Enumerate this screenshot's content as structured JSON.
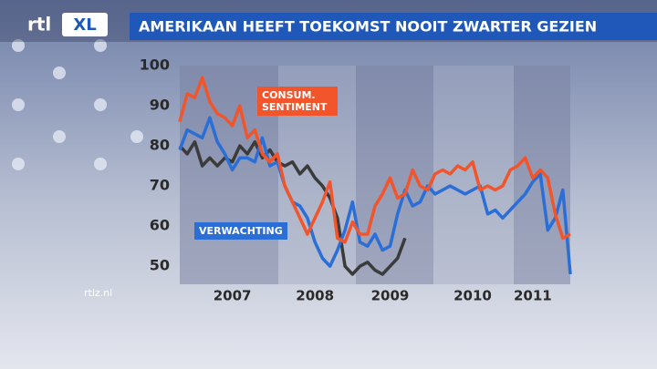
{
  "logo": [
    "rtl",
    "XL"
  ],
  "site": "rtlz.nl",
  "chart_data": {
    "type": "line",
    "title": "AMERIKAAN HEEFT TOEKOMST NOOIT ZWARTER GEZIEN",
    "xlim": [
      0,
      52
    ],
    "xticks": [
      {
        "value": 7,
        "label": "2007"
      },
      {
        "value": 18,
        "label": "2008"
      },
      {
        "value": 28,
        "label": "2009"
      },
      {
        "value": 39,
        "label": "2010"
      },
      {
        "value": 47,
        "label": "2011"
      }
    ],
    "ylim": [
      45.5,
      100
    ],
    "yticks": [
      50,
      60,
      70,
      80,
      90,
      100
    ],
    "series": [
      {
        "color": "#3b3b3b",
        "values": [
          80,
          78,
          81,
          75,
          77,
          75,
          77,
          76,
          80,
          78,
          81,
          77,
          79,
          76,
          75,
          76,
          73,
          75,
          72,
          70,
          67,
          62,
          50,
          48,
          50,
          51,
          49,
          48,
          50,
          52,
          57,
          null,
          null,
          null,
          null,
          null,
          null,
          null,
          null,
          null,
          null,
          null,
          null,
          null,
          null,
          null,
          null,
          null,
          null,
          null,
          null,
          null,
          null
        ]
      },
      {
        "name": "VERWACHTING",
        "color": "#2b6fd6",
        "values": [
          79,
          84,
          83,
          82,
          87,
          81,
          78,
          74,
          77,
          77,
          76,
          82,
          75,
          76,
          70,
          66,
          65,
          62,
          56,
          52,
          50,
          54,
          59,
          66,
          56,
          55,
          58,
          54,
          55,
          63,
          69,
          65,
          66,
          70,
          68,
          69,
          70,
          69,
          68,
          69,
          70,
          63,
          64,
          62,
          64,
          66,
          68,
          71,
          73,
          59,
          62,
          69,
          48
        ]
      },
      {
        "name": "CONSUM. SENTIMENT",
        "color": "#f2552b",
        "values": [
          86,
          93,
          92,
          97,
          91,
          88,
          87,
          85,
          90,
          82,
          84,
          78,
          76,
          78,
          70,
          66,
          62,
          58,
          62,
          66,
          71,
          57,
          56,
          61,
          58,
          58,
          65,
          68,
          72,
          67,
          68,
          74,
          70,
          69,
          73,
          74,
          73,
          75,
          74,
          76,
          69,
          70,
          69,
          70,
          74,
          75,
          77,
          72,
          74,
          72,
          63,
          57,
          58
        ]
      }
    ]
  }
}
